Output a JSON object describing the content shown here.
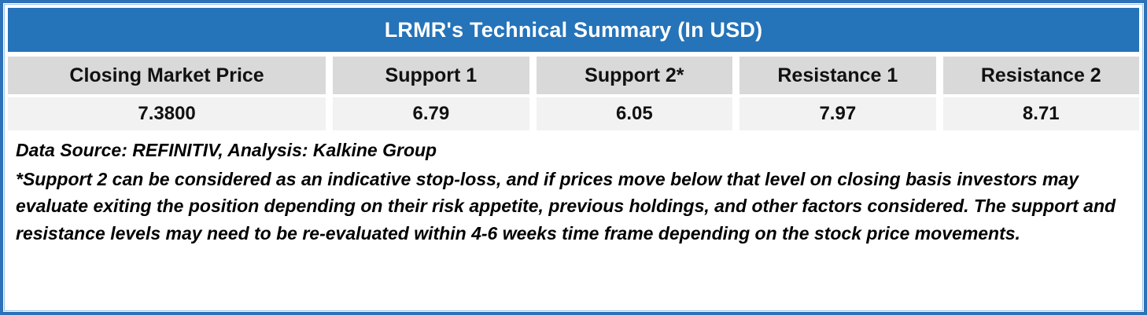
{
  "table": {
    "title": "LRMR's Technical Summary (In USD)",
    "columns": [
      {
        "label": "Closing Market Price",
        "value": "7.3800"
      },
      {
        "label": "Support 1",
        "value": "6.79"
      },
      {
        "label": "Support 2*",
        "value": "6.05"
      },
      {
        "label": "Resistance 1",
        "value": "7.97"
      },
      {
        "label": "Resistance 2",
        "value": "8.71"
      }
    ]
  },
  "notes": {
    "source": "Data Source: REFINITIV, Analysis: Kalkine Group",
    "disclaimer": "*Support 2 can be considered as an indicative stop-loss, and if prices move below that level on closing basis investors may evaluate exiting the position depending on their risk appetite, previous holdings, and other factors considered. The support and resistance levels may need to be re-evaluated within 4-6 weeks time frame depending on the stock price movements."
  },
  "colors": {
    "title_bg": "#2573b9",
    "title_text": "#ffffff",
    "header_bg": "#d9d9d9",
    "value_bg": "#f2f2f2",
    "border": "#2d72b8"
  }
}
